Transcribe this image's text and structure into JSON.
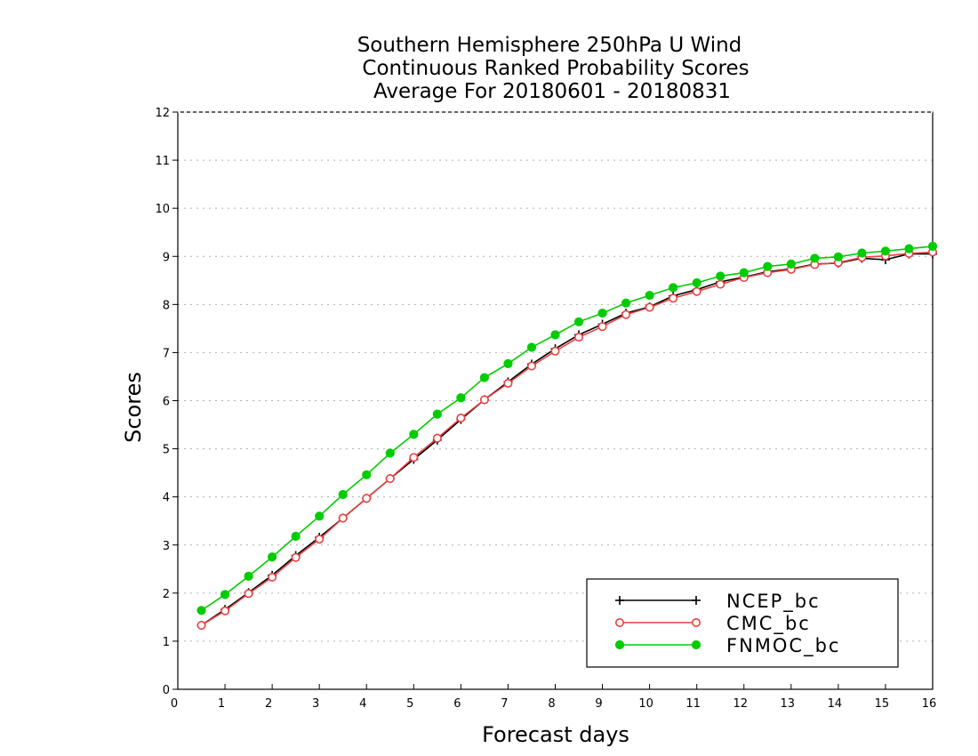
{
  "chart_data": {
    "type": "line",
    "title_lines": [
      "Southern Hemisphere 250hPa U Wind",
      "Continuous Ranked Probability Scores",
      "Average For 20180601 - 20180831"
    ],
    "xlabel": "Forecast days",
    "ylabel": "Scores",
    "xlim": [
      0,
      16
    ],
    "ylim": [
      0,
      12
    ],
    "xticks": [
      "0",
      "1",
      "2",
      "3",
      "4",
      "5",
      "6",
      "7",
      "8",
      "9",
      "10",
      "11",
      "12",
      "13",
      "14",
      "15",
      "16"
    ],
    "yticks": [
      "0",
      "1",
      "2",
      "3",
      "4",
      "5",
      "6",
      "7",
      "8",
      "9",
      "10",
      "11",
      "12"
    ],
    "grid": "horizontal dotted",
    "legend_position": "bottom-right",
    "x": [
      0.5,
      1,
      1.5,
      2,
      2.5,
      3,
      3.5,
      4,
      4.5,
      5,
      5.5,
      6,
      6.5,
      7,
      7.5,
      8,
      8.5,
      9,
      9.5,
      10,
      10.5,
      11,
      11.5,
      12,
      12.5,
      13,
      13.5,
      14,
      14.5,
      15,
      15.5,
      16
    ],
    "series": [
      {
        "name": "NCEP_bc",
        "color": "#000000",
        "marker": "plus",
        "values": [
          1.33,
          1.66,
          2.01,
          2.37,
          2.78,
          3.16,
          3.56,
          3.97,
          4.38,
          4.78,
          5.18,
          5.61,
          6.02,
          6.39,
          6.76,
          7.08,
          7.37,
          7.59,
          7.82,
          7.95,
          8.18,
          8.31,
          8.47,
          8.57,
          8.68,
          8.74,
          8.84,
          8.86,
          8.96,
          8.93,
          9.05,
          9.05
        ]
      },
      {
        "name": "CMC_bc",
        "color": "#e84040",
        "marker": "open-circle",
        "values": [
          1.33,
          1.63,
          1.99,
          2.33,
          2.74,
          3.12,
          3.56,
          3.97,
          4.38,
          4.82,
          5.22,
          5.64,
          6.02,
          6.36,
          6.72,
          7.03,
          7.32,
          7.54,
          7.79,
          7.94,
          8.13,
          8.27,
          8.42,
          8.56,
          8.66,
          8.73,
          8.83,
          8.87,
          8.98,
          9.01,
          9.06,
          9.09
        ]
      },
      {
        "name": "FNMOC_bc",
        "color": "#00cc00",
        "marker": "filled-circle",
        "values": [
          1.64,
          1.97,
          2.35,
          2.75,
          3.18,
          3.6,
          4.05,
          4.46,
          4.91,
          5.3,
          5.72,
          6.06,
          6.48,
          6.77,
          7.11,
          7.37,
          7.64,
          7.82,
          8.03,
          8.19,
          8.35,
          8.45,
          8.59,
          8.66,
          8.79,
          8.84,
          8.96,
          8.99,
          9.07,
          9.11,
          9.16,
          9.21
        ]
      }
    ]
  }
}
